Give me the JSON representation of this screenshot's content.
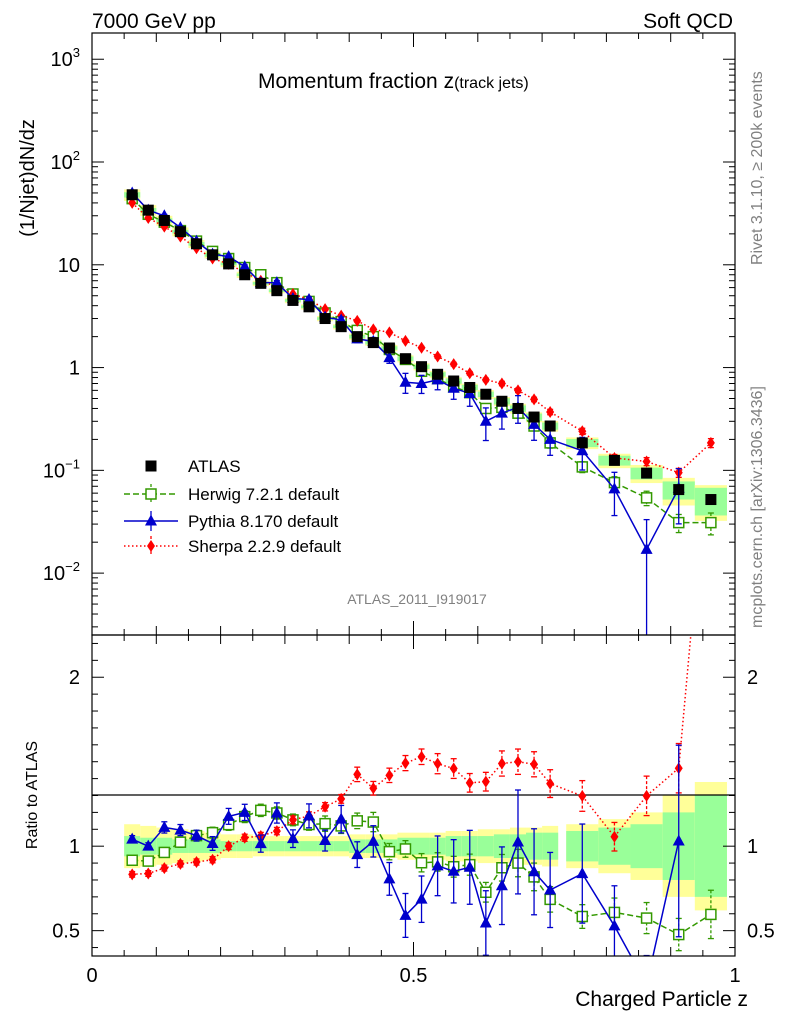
{
  "header": {
    "left": "7000 GeV pp",
    "right": "Soft QCD"
  },
  "side": {
    "rivet": "Rivet 3.1.10, ≥ 200k events",
    "mcplots": "mcplots.cern.ch [arXiv:1306.3436]"
  },
  "chart_data": {
    "type": "scatter",
    "title": "Momentum fraction z",
    "title_sub": "(track jets)",
    "analysis_id": "ATLAS_2011_I919017",
    "xlabel": "Charged Particle z",
    "ylabel": "(1/Njet)dN/dz",
    "ratio_ylabel": "Ratio to ATLAS",
    "xlim": [
      0,
      1
    ],
    "ylim": [
      0.0025,
      1800
    ],
    "ylog": true,
    "ratio_ylim": [
      0.35,
      2.25
    ],
    "x_ticks": [
      "0",
      "0.5",
      "1"
    ],
    "y_ticks": [
      {
        "base": "10",
        "exp": "3",
        "v": 1000
      },
      {
        "base": "10",
        "exp": "2",
        "v": 100
      },
      {
        "base": "10",
        "exp": "",
        "v": 10
      },
      {
        "base": "1",
        "exp": "",
        "v": 1
      },
      {
        "base": "10",
        "exp": "−1",
        "v": 0.1
      },
      {
        "base": "10",
        "exp": "−2",
        "v": 0.01
      }
    ],
    "ratio_ticks": [
      "0.5",
      "1",
      "2"
    ],
    "x": [
      0.0625,
      0.0875,
      0.1125,
      0.1375,
      0.1625,
      0.1875,
      0.2125,
      0.2375,
      0.2625,
      0.2875,
      0.3125,
      0.3375,
      0.3625,
      0.3875,
      0.4125,
      0.4375,
      0.4625,
      0.4875,
      0.5125,
      0.5375,
      0.5625,
      0.5875,
      0.6125,
      0.6375,
      0.6625,
      0.6875,
      0.7125,
      0.7625,
      0.8125,
      0.8625,
      0.9125,
      0.9625
    ],
    "bin_half_width": [
      0.0125,
      0.0125,
      0.0125,
      0.0125,
      0.0125,
      0.0125,
      0.0125,
      0.0125,
      0.0125,
      0.0125,
      0.0125,
      0.0125,
      0.0125,
      0.0125,
      0.0125,
      0.0125,
      0.0125,
      0.0125,
      0.0125,
      0.0125,
      0.0125,
      0.0125,
      0.0125,
      0.0125,
      0.0125,
      0.0125,
      0.0125,
      0.025,
      0.025,
      0.025,
      0.025,
      0.025
    ],
    "series": [
      {
        "name": "ATLAS",
        "label": "ATLAS",
        "color": "#000000",
        "marker": "square-filled",
        "values": [
          48,
          34,
          27,
          21,
          16,
          12.5,
          10.2,
          8.0,
          6.6,
          5.6,
          4.5,
          3.9,
          3.0,
          2.5,
          2.0,
          1.75,
          1.55,
          1.22,
          1.02,
          0.86,
          0.74,
          0.64,
          0.55,
          0.47,
          0.4,
          0.33,
          0.27,
          0.185,
          0.125,
          0.094,
          0.065,
          0.052
        ],
        "band_stat_frac": [
          0.06,
          0.05,
          0.05,
          0.04,
          0.04,
          0.04,
          0.03,
          0.03,
          0.03,
          0.03,
          0.03,
          0.03,
          0.03,
          0.03,
          0.04,
          0.04,
          0.04,
          0.05,
          0.05,
          0.05,
          0.06,
          0.06,
          0.06,
          0.07,
          0.07,
          0.08,
          0.08,
          0.09,
          0.11,
          0.13,
          0.2,
          0.3
        ],
        "band_tot_frac": [
          0.13,
          0.12,
          0.11,
          0.1,
          0.09,
          0.08,
          0.07,
          0.07,
          0.06,
          0.06,
          0.06,
          0.06,
          0.06,
          0.06,
          0.07,
          0.07,
          0.07,
          0.08,
          0.08,
          0.08,
          0.09,
          0.09,
          0.1,
          0.1,
          0.11,
          0.11,
          0.12,
          0.13,
          0.16,
          0.2,
          0.3,
          0.38
        ]
      },
      {
        "name": "Herwig",
        "label": "Herwig 7.2.1 default",
        "color": "#339900",
        "marker": "square-open",
        "dash": "6,3",
        "values": [
          44,
          31,
          26,
          21.5,
          17,
          13.5,
          11.5,
          9.4,
          8.0,
          6.7,
          5.2,
          4.4,
          3.4,
          2.8,
          2.3,
          2.0,
          1.5,
          1.2,
          0.92,
          0.78,
          0.65,
          0.57,
          0.4,
          0.41,
          0.36,
          0.27,
          0.185,
          0.108,
          0.076,
          0.054,
          0.031,
          0.031
        ],
        "err_frac": [
          0.03,
          0.03,
          0.03,
          0.03,
          0.03,
          0.03,
          0.03,
          0.03,
          0.03,
          0.03,
          0.03,
          0.03,
          0.04,
          0.04,
          0.04,
          0.05,
          0.05,
          0.05,
          0.06,
          0.06,
          0.07,
          0.07,
          0.08,
          0.09,
          0.09,
          0.1,
          0.11,
          0.12,
          0.14,
          0.16,
          0.2,
          0.24
        ]
      },
      {
        "name": "Pythia",
        "label": "Pythia 8.170 default",
        "color": "#0000cc",
        "marker": "triangle-filled",
        "values": [
          50,
          34,
          30,
          23,
          17,
          12.7,
          12.0,
          9.6,
          6.7,
          6.7,
          4.7,
          4.6,
          3.1,
          2.9,
          1.9,
          1.8,
          1.25,
          0.72,
          0.7,
          0.76,
          0.63,
          0.56,
          0.3,
          0.36,
          0.41,
          0.28,
          0.2,
          0.155,
          0.066,
          0.017,
          0.067,
          null
        ],
        "err_frac": [
          0.02,
          0.02,
          0.03,
          0.03,
          0.03,
          0.04,
          0.04,
          0.04,
          0.05,
          0.05,
          0.05,
          0.06,
          0.06,
          0.07,
          0.08,
          0.09,
          0.12,
          0.22,
          0.2,
          0.2,
          0.22,
          0.25,
          0.35,
          0.3,
          0.3,
          0.3,
          0.3,
          0.35,
          0.45,
          0.95,
          0.55,
          0
        ]
      },
      {
        "name": "Sherpa",
        "label": "Sherpa 2.2.9 default",
        "color": "#ff0000",
        "marker": "diamond-filled",
        "dash": "1.5,2.5",
        "values": [
          40,
          28.5,
          23.5,
          18.8,
          14.5,
          11.5,
          10.2,
          8.4,
          7.0,
          6.1,
          5.2,
          4.6,
          3.7,
          3.2,
          2.85,
          2.35,
          2.2,
          1.82,
          1.56,
          1.28,
          1.08,
          0.88,
          0.76,
          0.7,
          0.6,
          0.49,
          0.37,
          0.24,
          0.132,
          0.122,
          0.095,
          0.185
        ],
        "err_frac": [
          0.02,
          0.02,
          0.02,
          0.02,
          0.02,
          0.02,
          0.02,
          0.02,
          0.02,
          0.02,
          0.02,
          0.02,
          0.02,
          0.02,
          0.03,
          0.03,
          0.03,
          0.03,
          0.03,
          0.04,
          0.04,
          0.04,
          0.04,
          0.05,
          0.05,
          0.05,
          0.06,
          0.07,
          0.08,
          0.09,
          0.1,
          0.1
        ]
      }
    ]
  }
}
